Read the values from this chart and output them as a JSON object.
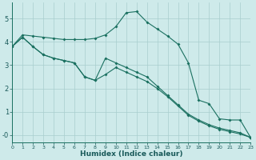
{
  "xlabel": "Humidex (Indice chaleur)",
  "bg_color": "#ceeaea",
  "grid_color": "#a8cece",
  "line_color": "#1a7060",
  "xlim": [
    0,
    23
  ],
  "ylim": [
    -0.3,
    5.7
  ],
  "xtick_labels": [
    "0",
    "1",
    "2",
    "3",
    "4",
    "5",
    "6",
    "7",
    "8",
    "9",
    "10",
    "11",
    "12",
    "13",
    "14",
    "15",
    "16",
    "17",
    "18",
    "19",
    "20",
    "21",
    "22",
    "23"
  ],
  "ytick_labels": [
    "-0",
    "1",
    "2",
    "3",
    "4",
    "5"
  ],
  "ytick_vals": [
    0,
    1,
    2,
    3,
    4,
    5
  ],
  "line1_x": [
    0,
    1,
    2,
    3,
    4,
    5,
    6,
    7,
    8,
    9,
    10,
    11,
    12,
    13,
    14,
    15,
    16,
    17,
    18,
    19,
    20,
    21,
    22,
    23
  ],
  "line1_y": [
    3.8,
    4.3,
    4.25,
    4.2,
    4.15,
    4.1,
    4.1,
    4.1,
    4.15,
    4.3,
    4.65,
    5.25,
    5.3,
    4.85,
    4.55,
    4.25,
    3.9,
    3.1,
    1.5,
    1.35,
    0.7,
    0.65,
    0.65,
    -0.1
  ],
  "line2_x": [
    0,
    1,
    2,
    3,
    4,
    5,
    6,
    7,
    8,
    9,
    10,
    11,
    12,
    13,
    14,
    15,
    16,
    17,
    18,
    19,
    20,
    21,
    22,
    23
  ],
  "line2_y": [
    3.8,
    4.2,
    3.8,
    3.45,
    3.3,
    3.2,
    3.1,
    2.5,
    2.35,
    3.3,
    3.1,
    2.9,
    2.7,
    2.5,
    2.1,
    1.7,
    1.3,
    0.9,
    0.65,
    0.45,
    0.3,
    0.2,
    0.1,
    -0.1
  ],
  "line3_x": [
    0,
    1,
    2,
    3,
    4,
    5,
    6,
    7,
    8,
    9,
    10,
    11,
    12,
    13,
    14,
    15,
    16,
    17,
    18,
    19,
    20,
    21,
    22,
    23
  ],
  "line3_y": [
    3.8,
    4.2,
    3.8,
    3.45,
    3.3,
    3.2,
    3.1,
    2.5,
    2.35,
    2.6,
    2.9,
    2.7,
    2.5,
    2.3,
    2.0,
    1.65,
    1.25,
    0.85,
    0.6,
    0.4,
    0.25,
    0.15,
    0.05,
    -0.1
  ]
}
